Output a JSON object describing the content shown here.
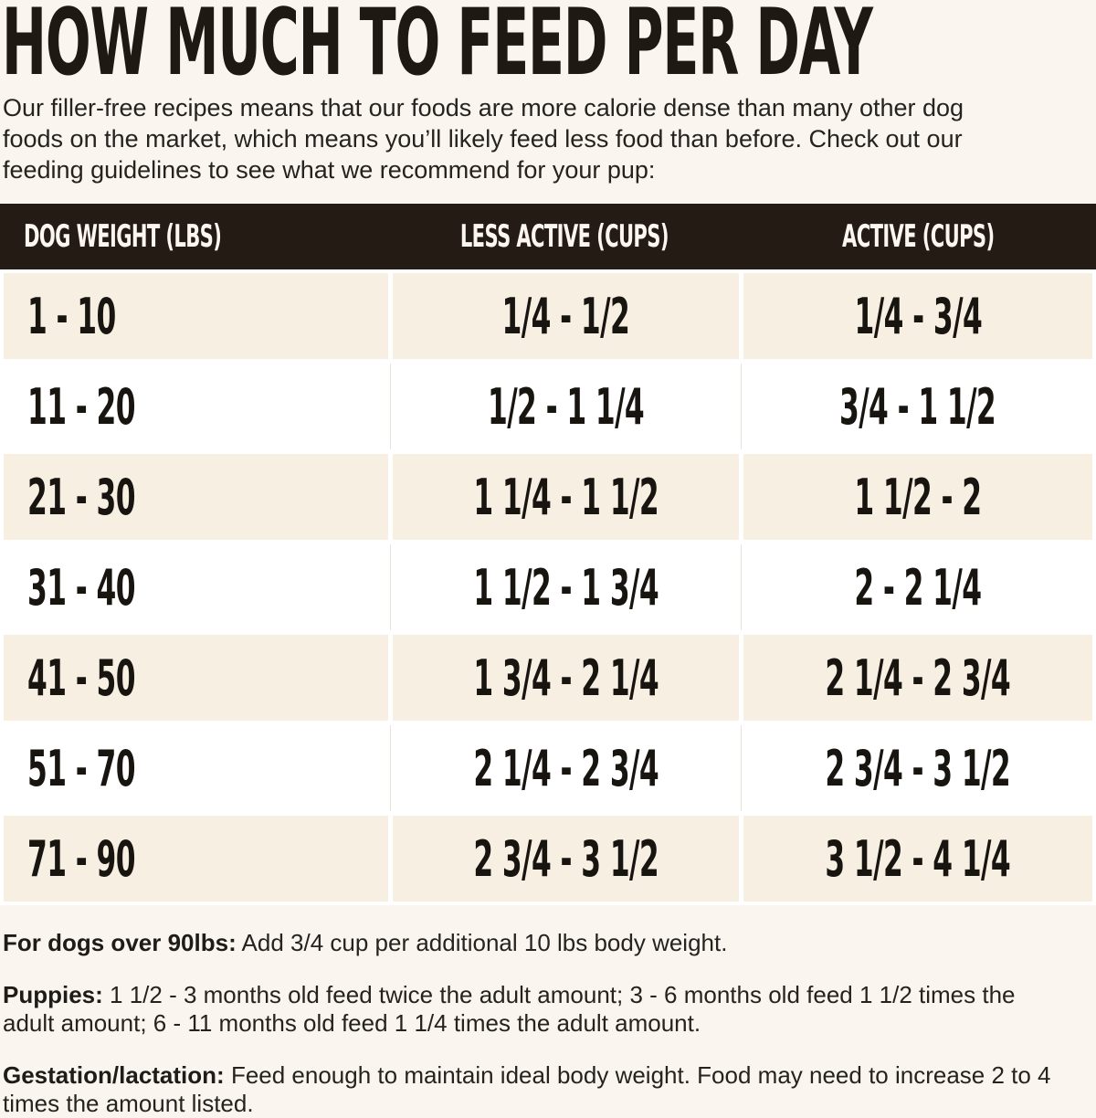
{
  "page": {
    "title": "HOW MUCH TO FEED PER DAY",
    "intro": "Our filler-free recipes means that our foods are more calorie dense than many other dog foods on the market, which means you’ll likely feed less food than before. Check out our feeding guidelines to see what we recommend for your pup:"
  },
  "table": {
    "headers": [
      "DOG WEIGHT (LBS)",
      "LESS ACTIVE (CUPS)",
      "ACTIVE (CUPS)"
    ],
    "rows": [
      [
        "1 - 10",
        "1/4 - 1/2",
        "1/4 - 3/4"
      ],
      [
        "11 - 20",
        "1/2 - 1 1/4",
        "3/4 - 1 1/2"
      ],
      [
        "21 - 30",
        "1 1/4 - 1 1/2",
        "1 1/2 - 2"
      ],
      [
        "31 - 40",
        "1 1/2 - 1 3/4",
        "2 - 2 1/4"
      ],
      [
        "41 - 50",
        "1 3/4 - 2 1/4",
        "2 1/4 - 2 3/4"
      ],
      [
        "51 - 70",
        "2 1/4 - 2 3/4",
        "2 3/4 - 3 1/2"
      ],
      [
        "71 - 90",
        "2 3/4 - 3 1/2",
        "3 1/2 - 4 1/4"
      ]
    ]
  },
  "notes": [
    {
      "label": "For dogs over 90lbs:",
      "text": "Add 3/4 cup per additional 10 lbs body weight."
    },
    {
      "label": "Puppies:",
      "text": "1 1/2 - 3 months old feed twice the adult amount; 3 - 6 months old feed 1 1/2 times the adult amount; 6 - 11 months old feed 1 1/4 times the adult amount."
    },
    {
      "label": "Gestation/lactation:",
      "text": "Feed enough to maintain ideal body weight. Food may need to increase 2 to 4 times the amount listed."
    }
  ],
  "colors": {
    "page_bg": "#faf6ef",
    "table_header_bg": "#241b15",
    "table_header_text": "#fbf7f0",
    "row_beige": "#f8efe3",
    "row_white": "#ffffff",
    "text": "#211d1a"
  }
}
